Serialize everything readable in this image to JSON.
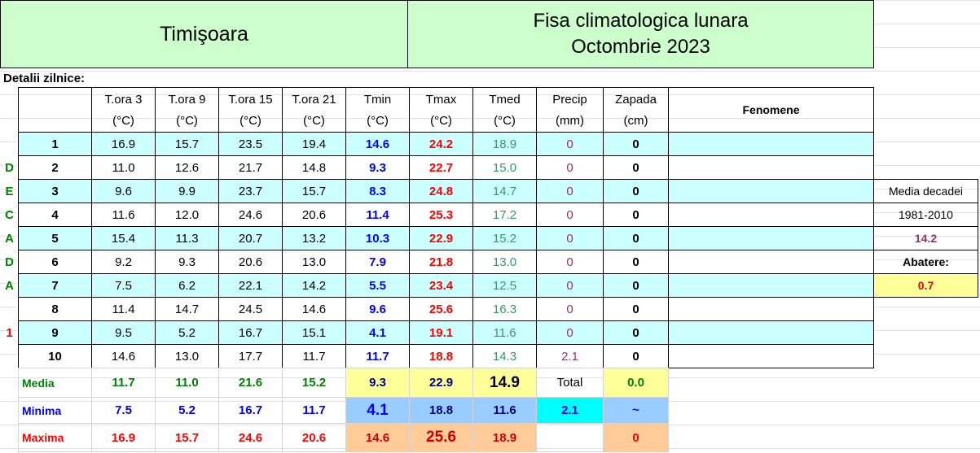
{
  "header": {
    "city": "Timişoara",
    "title_line1": "Fisa climatologica lunara",
    "title_line2": "Octombrie 2023"
  },
  "section_label": "Detalii zilnice:",
  "table": {
    "columns": [
      {
        "name": "T.ora 3",
        "unit": "(°C)"
      },
      {
        "name": "T.ora 9",
        "unit": "(°C)"
      },
      {
        "name": "T.ora 15",
        "unit": "(°C)"
      },
      {
        "name": "T.ora 21",
        "unit": "(°C)"
      },
      {
        "name": "Tmin",
        "unit": "(°C)"
      },
      {
        "name": "Tmax",
        "unit": "(°C)"
      },
      {
        "name": "Tmed",
        "unit": "(°C)"
      },
      {
        "name": "Precip",
        "unit": "(mm)"
      },
      {
        "name": "Zapada",
        "unit": "(cm)"
      }
    ],
    "fenomene": "Fenomene",
    "rows": [
      {
        "day": "1",
        "values": [
          "16.9",
          "15.7",
          "23.5",
          "19.4",
          "14.6",
          "24.2",
          "18.9",
          "0",
          "0"
        ]
      },
      {
        "side": "D",
        "day": "2",
        "values": [
          "11.0",
          "12.6",
          "21.7",
          "14.8",
          "9.3",
          "22.7",
          "15.0",
          "0",
          "0"
        ]
      },
      {
        "side": "E",
        "day": "3",
        "values": [
          "9.6",
          "9.9",
          "23.7",
          "15.7",
          "8.3",
          "24.8",
          "14.7",
          "0",
          "0"
        ]
      },
      {
        "side": "C",
        "day": "4",
        "values": [
          "11.6",
          "12.0",
          "24.6",
          "20.6",
          "11.4",
          "25.3",
          "17.2",
          "0",
          "0"
        ]
      },
      {
        "side": "A",
        "day": "5",
        "values": [
          "15.4",
          "11.3",
          "20.7",
          "13.2",
          "10.3",
          "22.9",
          "15.2",
          "0",
          "0"
        ]
      },
      {
        "side": "D",
        "day": "6",
        "values": [
          "9.2",
          "9.3",
          "20.6",
          "13.0",
          "7.9",
          "21.8",
          "13.0",
          "0",
          "0"
        ]
      },
      {
        "side": "A",
        "day": "7",
        "values": [
          "7.5",
          "6.2",
          "22.1",
          "14.2",
          "5.5",
          "23.4",
          "12.5",
          "0",
          "0"
        ]
      },
      {
        "day": "8",
        "values": [
          "11.4",
          "14.7",
          "24.5",
          "14.6",
          "9.6",
          "25.6",
          "16.3",
          "0",
          "0"
        ]
      },
      {
        "side": "1",
        "day": "9",
        "values": [
          "9.5",
          "5.2",
          "16.7",
          "15.1",
          "4.1",
          "19.1",
          "11.6",
          "0",
          "0"
        ]
      },
      {
        "day": "10",
        "values": [
          "14.6",
          "13.0",
          "17.7",
          "11.7",
          "11.7",
          "18.8",
          "14.3",
          "2.1",
          "0"
        ]
      }
    ]
  },
  "summary": [
    {
      "label": "Media",
      "values": [
        "11.7",
        "11.0",
        "21.6",
        "15.2",
        "9.3",
        "22.9",
        "14.9",
        "Total",
        "0.0"
      ]
    },
    {
      "label": "Minima",
      "values": [
        "7.5",
        "5.2",
        "16.7",
        "11.7",
        "4.1",
        "18.8",
        "11.6",
        "2.1",
        "~"
      ]
    },
    {
      "label": "Maxima",
      "values": [
        "16.9",
        "15.7",
        "24.6",
        "20.6",
        "14.6",
        "25.6",
        "18.9",
        null,
        "0"
      ]
    }
  ],
  "reference": {
    "label": "Media decadei",
    "period": "1981-2010",
    "value": "14.2",
    "deviation_label": "Abatere:",
    "deviation": "0.7"
  }
}
